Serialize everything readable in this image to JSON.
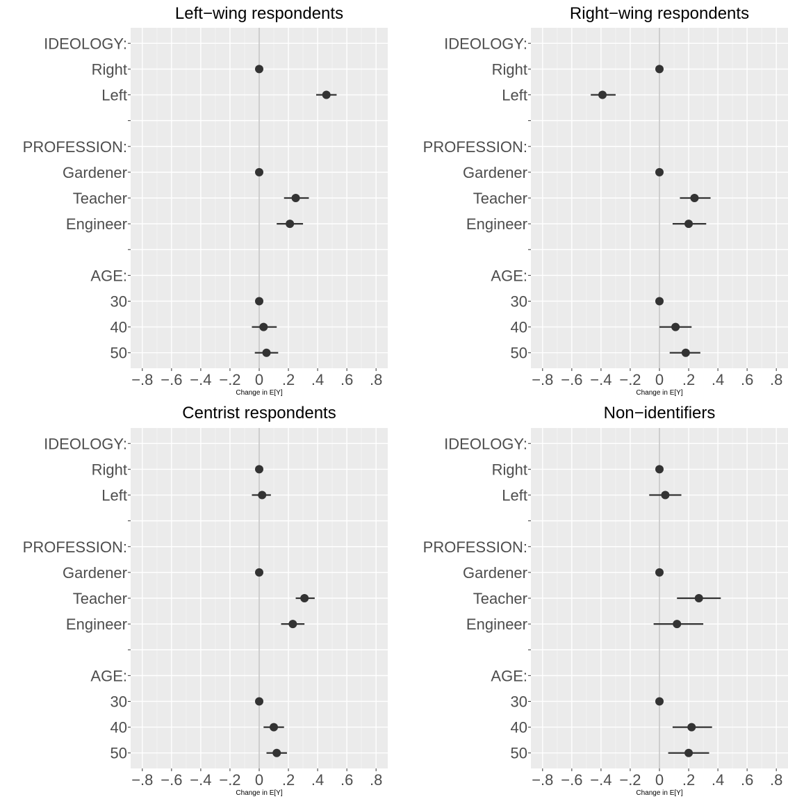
{
  "chart_data": [
    {
      "type": "coefficient-plot",
      "title": "Left−wing respondents",
      "xlabel": "Change in E[Y]",
      "xlim": [
        -0.88,
        0.88
      ],
      "xticks": [
        -0.8,
        -0.6,
        -0.4,
        -0.2,
        0,
        0.2,
        0.4,
        0.6,
        0.8
      ],
      "xtick_labels": [
        "−.8",
        "−.6",
        "−.4",
        "−.2",
        "0",
        ".2",
        ".4",
        ".6",
        ".8"
      ],
      "reference_line": 0,
      "rows": [
        {
          "label": "IDEOLOGY:",
          "header": true
        },
        {
          "label": "Right",
          "estimate": 0.0,
          "lower": 0.0,
          "upper": 0.0
        },
        {
          "label": "Left",
          "estimate": 0.46,
          "lower": 0.39,
          "upper": 0.53
        },
        {
          "label": "",
          "spacer": true
        },
        {
          "label": "PROFESSION:",
          "header": true
        },
        {
          "label": "Gardener",
          "estimate": 0.0,
          "lower": 0.0,
          "upper": 0.0
        },
        {
          "label": "Teacher",
          "estimate": 0.25,
          "lower": 0.17,
          "upper": 0.34
        },
        {
          "label": "Engineer",
          "estimate": 0.21,
          "lower": 0.12,
          "upper": 0.3
        },
        {
          "label": "",
          "spacer": true
        },
        {
          "label": "AGE:",
          "header": true
        },
        {
          "label": "30",
          "estimate": 0.0,
          "lower": 0.0,
          "upper": 0.0
        },
        {
          "label": "40",
          "estimate": 0.03,
          "lower": -0.05,
          "upper": 0.12
        },
        {
          "label": "50",
          "estimate": 0.05,
          "lower": -0.03,
          "upper": 0.13
        }
      ]
    },
    {
      "type": "coefficient-plot",
      "title": "Right−wing respondents",
      "xlabel": "Change in E[Y]",
      "xlim": [
        -0.88,
        0.88
      ],
      "xticks": [
        -0.8,
        -0.6,
        -0.4,
        -0.2,
        0,
        0.2,
        0.4,
        0.6,
        0.8
      ],
      "xtick_labels": [
        "−.8",
        "−.6",
        "−.4",
        "−.2",
        "0",
        ".2",
        ".4",
        ".6",
        ".8"
      ],
      "reference_line": 0,
      "rows": [
        {
          "label": "IDEOLOGY:",
          "header": true
        },
        {
          "label": "Right",
          "estimate": 0.0,
          "lower": 0.0,
          "upper": 0.0
        },
        {
          "label": "Left",
          "estimate": -0.39,
          "lower": -0.47,
          "upper": -0.3
        },
        {
          "label": "",
          "spacer": true
        },
        {
          "label": "PROFESSION:",
          "header": true
        },
        {
          "label": "Gardener",
          "estimate": 0.0,
          "lower": 0.0,
          "upper": 0.0
        },
        {
          "label": "Teacher",
          "estimate": 0.24,
          "lower": 0.14,
          "upper": 0.35
        },
        {
          "label": "Engineer",
          "estimate": 0.2,
          "lower": 0.09,
          "upper": 0.32
        },
        {
          "label": "",
          "spacer": true
        },
        {
          "label": "AGE:",
          "header": true
        },
        {
          "label": "30",
          "estimate": 0.0,
          "lower": 0.0,
          "upper": 0.0
        },
        {
          "label": "40",
          "estimate": 0.11,
          "lower": 0.0,
          "upper": 0.22
        },
        {
          "label": "50",
          "estimate": 0.18,
          "lower": 0.07,
          "upper": 0.28
        }
      ]
    },
    {
      "type": "coefficient-plot",
      "title": "Centrist respondents",
      "xlabel": "Change in E[Y]",
      "xlim": [
        -0.88,
        0.88
      ],
      "xticks": [
        -0.8,
        -0.6,
        -0.4,
        -0.2,
        0,
        0.2,
        0.4,
        0.6,
        0.8
      ],
      "xtick_labels": [
        "−.8",
        "−.6",
        "−.4",
        "−.2",
        "0",
        ".2",
        ".4",
        ".6",
        ".8"
      ],
      "reference_line": 0,
      "rows": [
        {
          "label": "IDEOLOGY:",
          "header": true
        },
        {
          "label": "Right",
          "estimate": 0.0,
          "lower": 0.0,
          "upper": 0.0
        },
        {
          "label": "Left",
          "estimate": 0.02,
          "lower": -0.05,
          "upper": 0.08
        },
        {
          "label": "",
          "spacer": true
        },
        {
          "label": "PROFESSION:",
          "header": true
        },
        {
          "label": "Gardener",
          "estimate": 0.0,
          "lower": 0.0,
          "upper": 0.0
        },
        {
          "label": "Teacher",
          "estimate": 0.31,
          "lower": 0.25,
          "upper": 0.38
        },
        {
          "label": "Engineer",
          "estimate": 0.23,
          "lower": 0.15,
          "upper": 0.31
        },
        {
          "label": "",
          "spacer": true
        },
        {
          "label": "AGE:",
          "header": true
        },
        {
          "label": "30",
          "estimate": 0.0,
          "lower": 0.0,
          "upper": 0.0
        },
        {
          "label": "40",
          "estimate": 0.1,
          "lower": 0.03,
          "upper": 0.17
        },
        {
          "label": "50",
          "estimate": 0.12,
          "lower": 0.05,
          "upper": 0.19
        }
      ]
    },
    {
      "type": "coefficient-plot",
      "title": "Non−identifiers",
      "xlabel": "Change in E[Y]",
      "xlim": [
        -0.88,
        0.88
      ],
      "xticks": [
        -0.8,
        -0.6,
        -0.4,
        -0.2,
        0,
        0.2,
        0.4,
        0.6,
        0.8
      ],
      "xtick_labels": [
        "−.8",
        "−.6",
        "−.4",
        "−.2",
        "0",
        ".2",
        ".4",
        ".6",
        ".8"
      ],
      "reference_line": 0,
      "rows": [
        {
          "label": "IDEOLOGY:",
          "header": true
        },
        {
          "label": "Right",
          "estimate": 0.0,
          "lower": 0.0,
          "upper": 0.0
        },
        {
          "label": "Left",
          "estimate": 0.04,
          "lower": -0.07,
          "upper": 0.15
        },
        {
          "label": "",
          "spacer": true
        },
        {
          "label": "PROFESSION:",
          "header": true
        },
        {
          "label": "Gardener",
          "estimate": 0.0,
          "lower": 0.0,
          "upper": 0.0
        },
        {
          "label": "Teacher",
          "estimate": 0.27,
          "lower": 0.12,
          "upper": 0.42
        },
        {
          "label": "Engineer",
          "estimate": 0.12,
          "lower": -0.04,
          "upper": 0.3
        },
        {
          "label": "",
          "spacer": true
        },
        {
          "label": "AGE:",
          "header": true
        },
        {
          "label": "30",
          "estimate": 0.0,
          "lower": 0.0,
          "upper": 0.0
        },
        {
          "label": "40",
          "estimate": 0.22,
          "lower": 0.09,
          "upper": 0.36
        },
        {
          "label": "50",
          "estimate": 0.2,
          "lower": 0.06,
          "upper": 0.34
        }
      ]
    }
  ],
  "colors": {
    "panel_background": "#ebebeb",
    "grid_major": "#ffffff",
    "grid_minor": "#f5f5f5",
    "point": "#333333",
    "zero_line": "#bebebe",
    "axis_text": "#4d4d4d"
  }
}
